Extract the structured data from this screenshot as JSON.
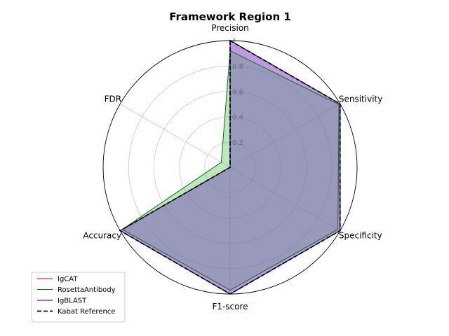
{
  "chart_data": {
    "type": "radar",
    "title": "Framework Region 1",
    "axes": [
      "Precision",
      "Sensitivity",
      "Specificity",
      "F1-score",
      "Accuracy",
      "FDR"
    ],
    "rlim": [
      0,
      1
    ],
    "rticks": [
      0.2,
      0.4,
      0.6,
      0.8,
      1
    ],
    "rtick_labels": [
      "0.2",
      "0.4",
      "0.6",
      "0.8",
      "1"
    ],
    "grid": true,
    "legend_position": "lower-left",
    "series": [
      {
        "name": "IgCAT",
        "values": [
          1.0,
          1.0,
          1.0,
          1.0,
          1.0,
          0.0
        ],
        "color": "#cc0000",
        "fill": "#cc44cc",
        "dashed": false
      },
      {
        "name": "RosettaAntibody",
        "values": [
          0.92,
          0.99,
          0.98,
          0.97,
          0.98,
          0.08
        ],
        "color": "#007700",
        "fill": "#44bb44",
        "dashed": false
      },
      {
        "name": "IgBLAST",
        "values": [
          1.0,
          1.0,
          1.0,
          1.0,
          1.0,
          0.0
        ],
        "color": "#000099",
        "fill": "#6a5acd",
        "dashed": false
      },
      {
        "name": "Kabat Reference",
        "values": [
          1.0,
          1.0,
          1.0,
          1.0,
          1.0,
          0.0
        ],
        "color": "#000000",
        "fill": "none",
        "dashed": true
      }
    ]
  }
}
